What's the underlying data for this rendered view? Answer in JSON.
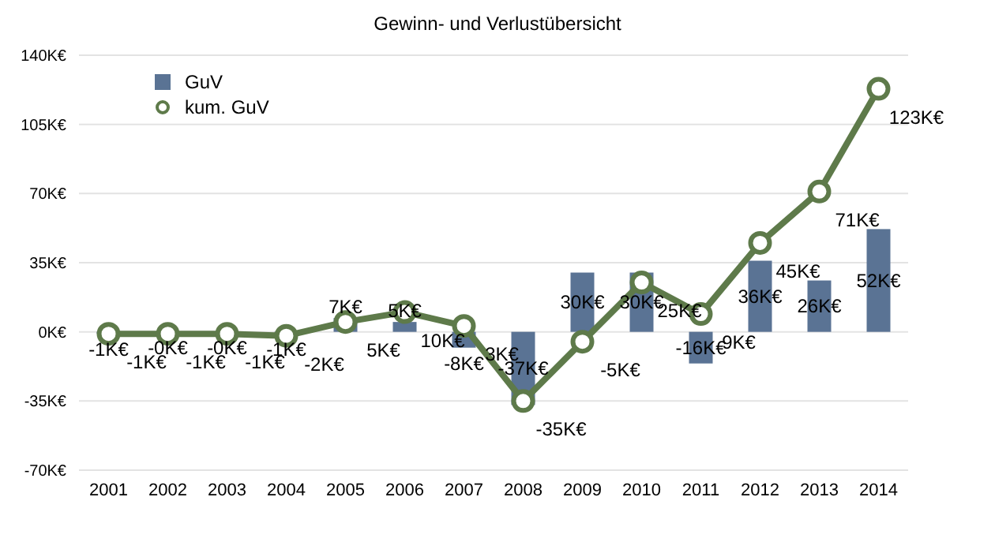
{
  "chart_data": {
    "type": "bar",
    "title": "Gewinn- und Verlustübersicht",
    "categories": [
      "2001",
      "2002",
      "2003",
      "2004",
      "2005",
      "2006",
      "2007",
      "2008",
      "2009",
      "2010",
      "2011",
      "2012",
      "2013",
      "2014"
    ],
    "series": [
      {
        "name": "GuV",
        "color": "#5a7394",
        "values": [
          -1,
          0,
          0,
          -1,
          7,
          5,
          -8,
          -37,
          30,
          30,
          -16,
          36,
          26,
          52
        ],
        "value_labels": [
          "-1K€",
          "-0K€",
          "-0K€",
          "-1K€",
          "7K€",
          "5K€",
          "-8K€",
          "-37K€",
          "30K€",
          "30K€",
          "-16K€",
          "36K€",
          "26K€",
          "52K€"
        ]
      },
      {
        "name": "kum. GuV",
        "type": "line",
        "color": "#5e7a4a",
        "values": [
          -1,
          -1,
          -1,
          -2,
          5,
          10,
          3,
          -35,
          -5,
          25,
          9,
          45,
          71,
          123
        ],
        "value_labels": [
          "-1K€",
          "-1K€",
          "-1K€",
          "-2K€",
          "5K€",
          "10K€",
          "3K€",
          "-35K€",
          "-5K€",
          "25K€",
          "9K€",
          "45K€",
          "71K€",
          "123K€"
        ]
      }
    ],
    "ylim": [
      -70,
      140
    ],
    "yticks": [
      {
        "value": -70,
        "label": "-70K€"
      },
      {
        "value": -35,
        "label": "-35K€"
      },
      {
        "value": 0,
        "label": "0K€"
      },
      {
        "value": 35,
        "label": "35K€"
      },
      {
        "value": 70,
        "label": "70K€"
      },
      {
        "value": 105,
        "label": "105K€"
      },
      {
        "value": 140,
        "label": "140K€"
      }
    ],
    "grid": "y",
    "legend": "top left",
    "marker": "circle",
    "line_style": "solid"
  }
}
